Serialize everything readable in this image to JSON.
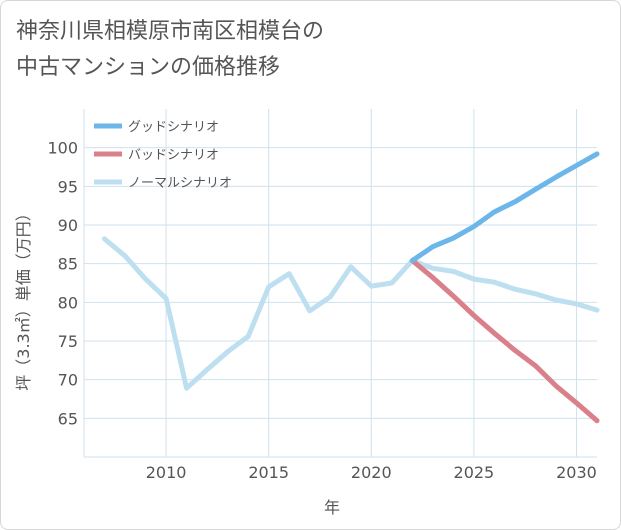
{
  "title_lines": [
    "神奈川県相模原市南区相模台の",
    "中古マンションの価格推移"
  ],
  "colors": {
    "good": "#6cb6ea",
    "bad": "#d9808b",
    "normal": "#bedff0",
    "grid": "#cfe2ee",
    "axis_text": "#555555"
  },
  "chart_data": {
    "type": "line",
    "xlabel": "年",
    "ylabel": "坪（3.3㎡）単価（万円）",
    "xlim": [
      2006,
      2031
    ],
    "ylim": [
      60,
      105
    ],
    "x_ticks": [
      2010,
      2015,
      2020,
      2025,
      2030
    ],
    "y_ticks": [
      65,
      70,
      75,
      80,
      85,
      90,
      95,
      100
    ],
    "grid": true,
    "legend_position": "top-left",
    "series": [
      {
        "name": "グッドシナリオ",
        "color_key": "good",
        "x": [
          2022,
          2023,
          2024,
          2025,
          2026,
          2027,
          2028,
          2029,
          2030,
          2031
        ],
        "y": [
          85.4,
          87.2,
          88.3,
          89.8,
          91.7,
          93.0,
          94.6,
          96.2,
          97.7,
          99.2
        ]
      },
      {
        "name": "バッドシナリオ",
        "color_key": "bad",
        "x": [
          2022,
          2023,
          2024,
          2025,
          2026,
          2027,
          2028,
          2029,
          2030,
          2031
        ],
        "y": [
          85.4,
          83.2,
          80.8,
          78.3,
          76.0,
          73.8,
          71.8,
          69.2,
          67.0,
          64.7
        ]
      },
      {
        "name": "ノーマルシナリオ",
        "color_key": "normal",
        "x": [
          2007,
          2008,
          2009,
          2010,
          2011,
          2012,
          2013,
          2014,
          2015,
          2016,
          2017,
          2018,
          2019,
          2020,
          2021,
          2022,
          2023,
          2024,
          2025,
          2026,
          2027,
          2028,
          2029,
          2030,
          2031
        ],
        "y": [
          88.2,
          86.0,
          83.0,
          80.5,
          68.9,
          71.3,
          73.6,
          75.6,
          82.0,
          83.7,
          78.9,
          80.7,
          84.6,
          82.1,
          82.5,
          85.4,
          84.4,
          84.0,
          83.0,
          82.6,
          81.7,
          81.1,
          80.3,
          79.8,
          79.0
        ]
      }
    ]
  }
}
